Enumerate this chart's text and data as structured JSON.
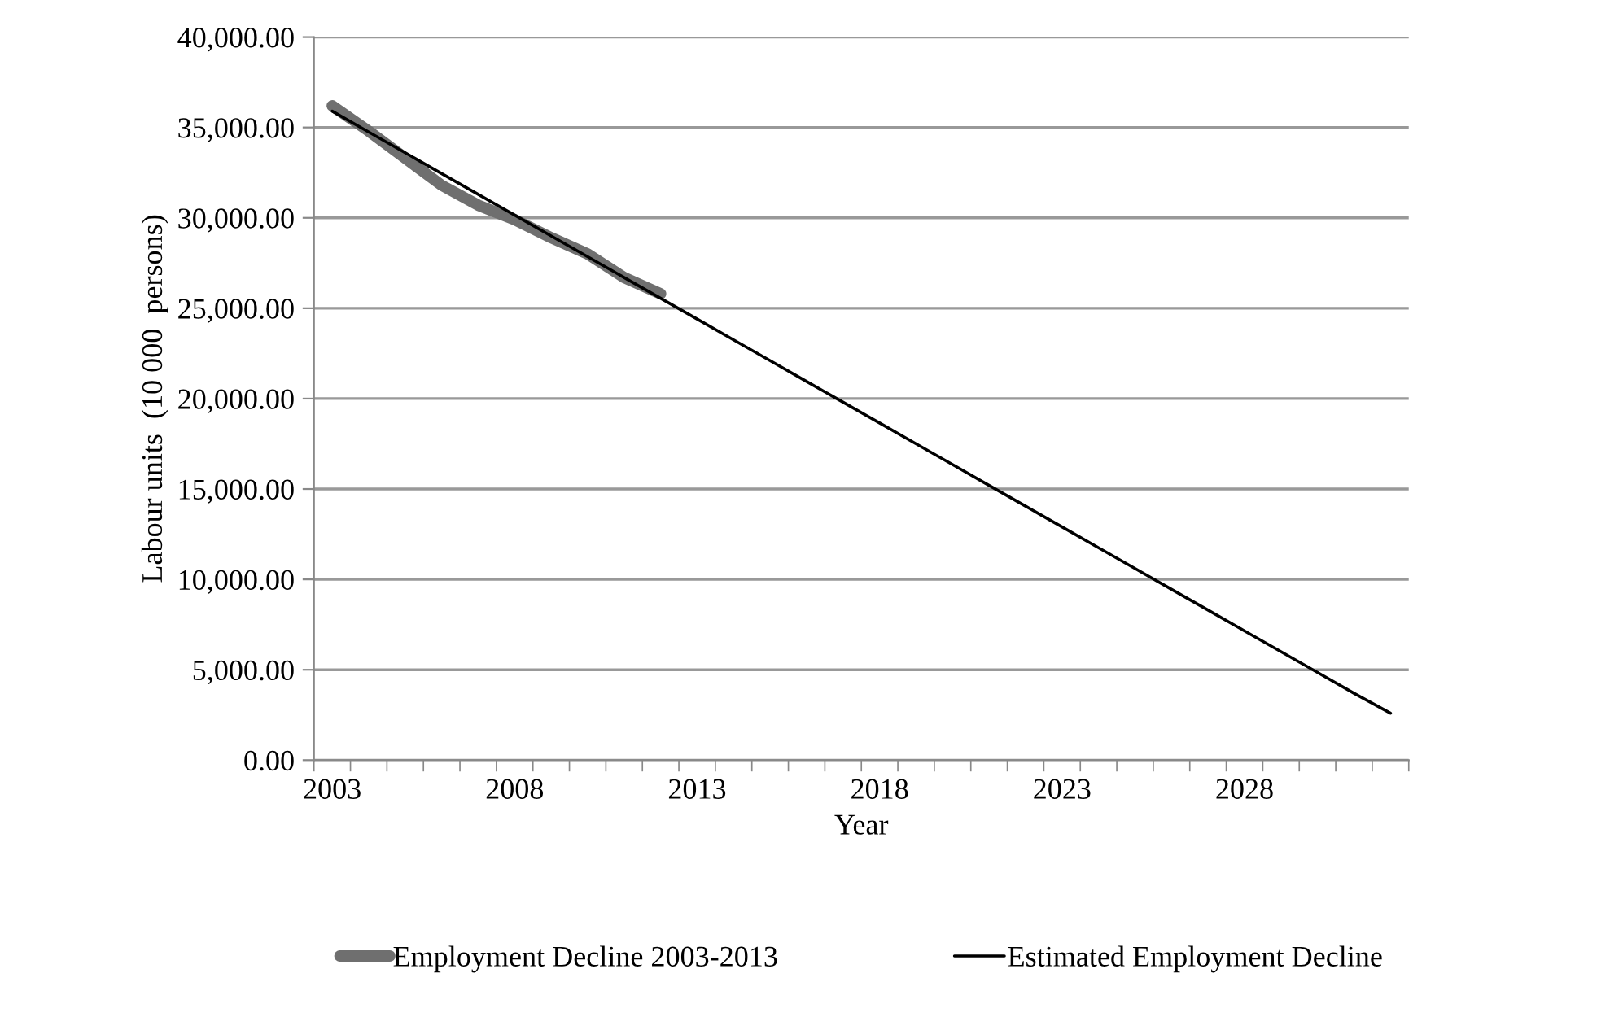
{
  "chart_data": {
    "type": "line",
    "xlabel": "Year",
    "ylabel": "Labour units  (10 000  persons)",
    "categories": [
      "2003",
      null,
      null,
      null,
      null,
      "2008",
      null,
      null,
      null,
      null,
      "2013",
      null,
      null,
      null,
      null,
      "2018",
      null,
      null,
      null,
      null,
      "2023",
      null,
      null,
      null,
      null,
      "2028",
      null,
      null,
      null,
      null
    ],
    "ylim": [
      0,
      40000
    ],
    "yticks": [
      {
        "value": 0,
        "label": "0.00"
      },
      {
        "value": 5000,
        "label": "5,000.00"
      },
      {
        "value": 10000,
        "label": "10,000.00"
      },
      {
        "value": 15000,
        "label": "15,000.00"
      },
      {
        "value": 20000,
        "label": "20,000.00"
      },
      {
        "value": 25000,
        "label": "25,000.00"
      },
      {
        "value": 30000,
        "label": "30,000.00"
      },
      {
        "value": 35000,
        "label": "35,000.00"
      },
      {
        "value": 40000,
        "label": "40,000.00"
      }
    ],
    "grid": "y",
    "legend": "bottom",
    "marker": "none",
    "series": [
      {
        "name": "Employment Decline 2003-2013",
        "color": "#6f6f6f",
        "values": [
          36200,
          34800,
          33300,
          31800,
          30700,
          29900,
          28900,
          28000,
          26700,
          25800,
          null,
          null,
          null,
          null,
          null,
          null,
          null,
          null,
          null,
          null,
          null,
          null,
          null,
          null,
          null,
          null,
          null,
          null,
          null,
          null
        ]
      },
      {
        "name": "Estimated Employment Decline",
        "color": "#000000",
        "values": [
          35900,
          34750,
          33600,
          32450,
          31300,
          30150,
          29000,
          27850,
          26700,
          25550,
          24400,
          23250,
          22100,
          20950,
          19800,
          18650,
          17500,
          16350,
          15200,
          14050,
          12900,
          11750,
          10600,
          9450,
          8300,
          7150,
          6000,
          4850,
          3700,
          2600
        ]
      }
    ]
  }
}
